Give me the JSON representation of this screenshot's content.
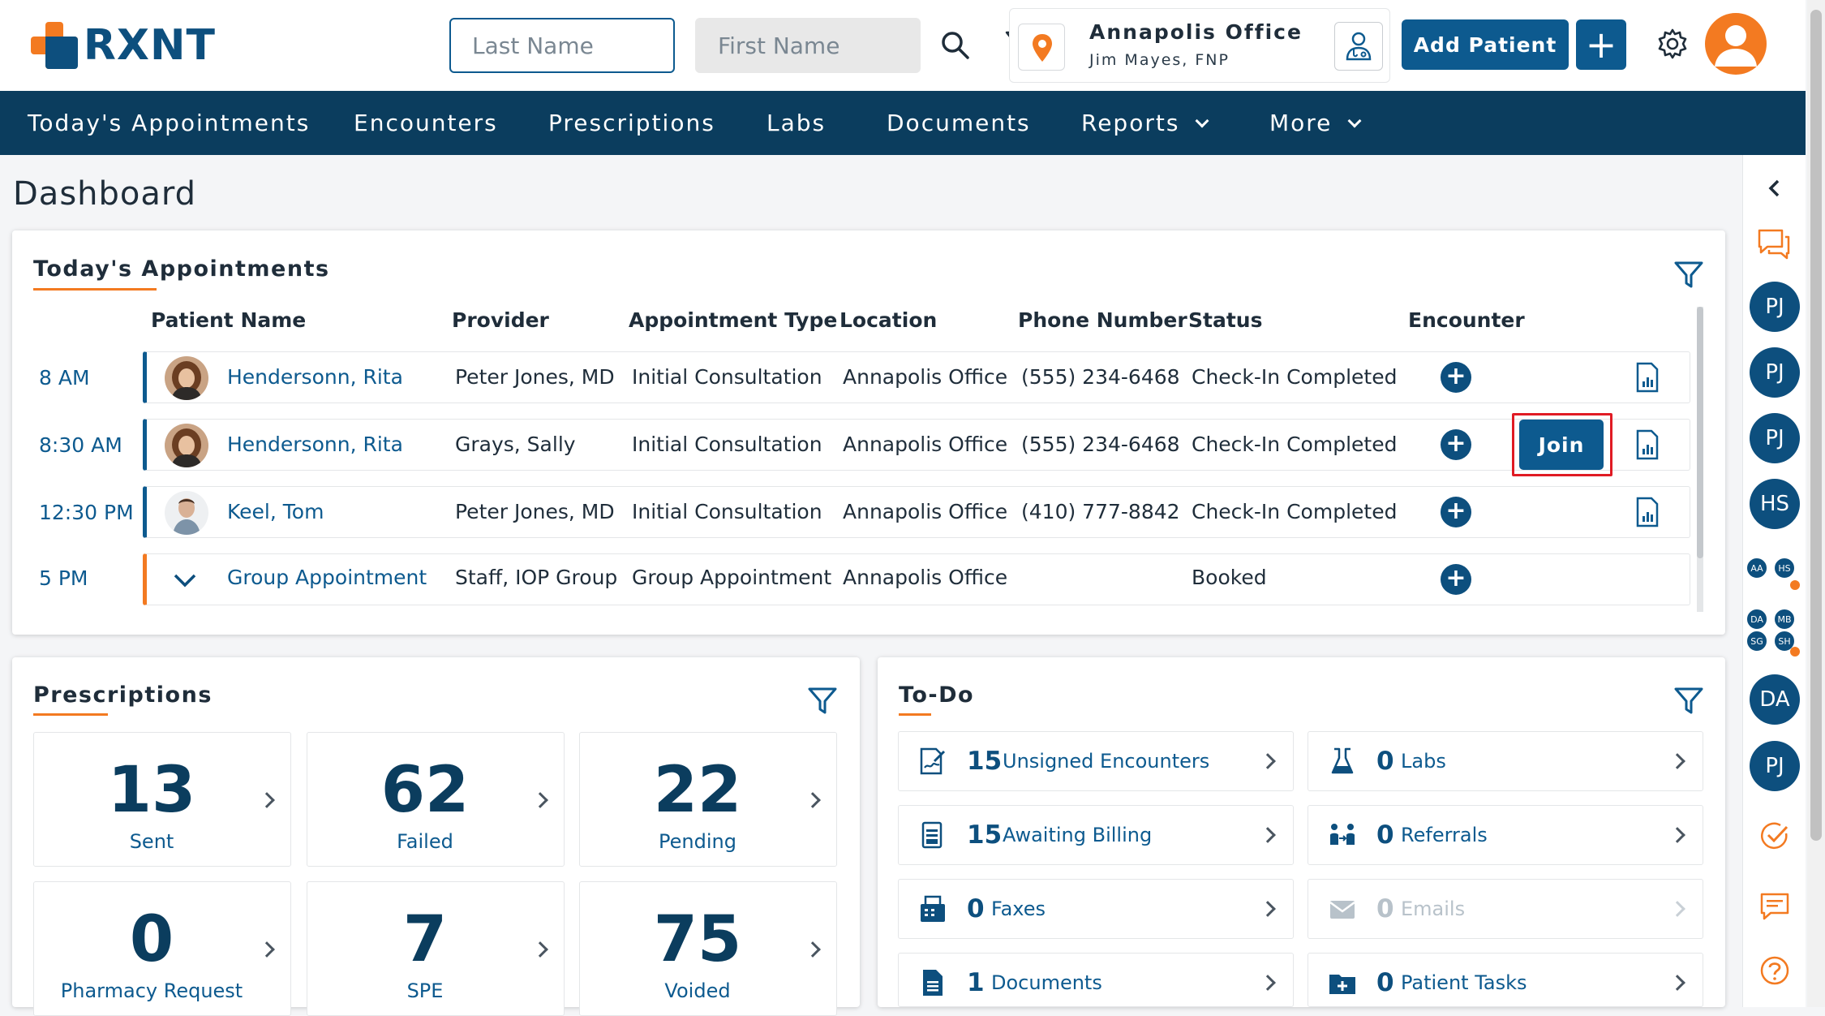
{
  "header": {
    "logo_text": "RXNT",
    "last_name_placeholder": "Last Name",
    "first_name_placeholder": "First Name",
    "office_name": "Annapolis Office",
    "office_user": "Jim Mayes, FNP",
    "add_patient_label": "Add Patient",
    "plus_label": "+"
  },
  "nav": {
    "items": [
      "Today's Appointments",
      "Encounters",
      "Prescriptions",
      "Labs",
      "Documents",
      "Reports",
      "More"
    ]
  },
  "page_title": "Dashboard",
  "appointments": {
    "title": "Today's Appointments",
    "columns": [
      "Patient Name",
      "Provider",
      "Appointment Type",
      "Location",
      "Phone Number",
      "Status",
      "Encounter"
    ],
    "rows": [
      {
        "time": "8 AM",
        "patient": "Hendersonn, Rita",
        "provider": "Peter Jones, MD",
        "type": "Initial Consultation",
        "location": "Annapolis Office",
        "phone": "(555) 234-6468",
        "status": "Check-In Completed"
      },
      {
        "time": "8:30 AM",
        "patient": "Hendersonn, Rita",
        "provider": "Grays, Sally",
        "type": "Initial Consultation",
        "location": "Annapolis Office",
        "phone": "(555) 234-6468",
        "status": "Check-In Completed"
      },
      {
        "time": "12:30 PM",
        "patient": "Keel, Tom",
        "provider": "Peter Jones, MD",
        "type": "Initial Consultation",
        "location": "Annapolis Office",
        "phone": "(410) 777-8842",
        "status": "Check-In Completed"
      },
      {
        "time": "5 PM",
        "patient": "Group Appointment",
        "provider": "Staff, IOP Group",
        "type": "Group Appointment",
        "location": "Annapolis Office",
        "phone": "",
        "status": "Booked"
      }
    ],
    "join_label": "Join",
    "encounter_plus": "+"
  },
  "prescriptions": {
    "title": "Prescriptions",
    "stats": [
      {
        "value": "13",
        "label": "Sent"
      },
      {
        "value": "62",
        "label": "Failed"
      },
      {
        "value": "22",
        "label": "Pending"
      },
      {
        "value": "0",
        "label": "Pharmacy Request"
      },
      {
        "value": "7",
        "label": "SPE"
      },
      {
        "value": "75",
        "label": "Voided"
      }
    ]
  },
  "todo": {
    "title": "To-Do",
    "items": [
      {
        "count": "15",
        "label": "Unsigned Encounters",
        "icon": "signature-doc-icon"
      },
      {
        "count": "0",
        "label": "Labs",
        "icon": "flask-icon"
      },
      {
        "count": "15",
        "label": "Awaiting Billing",
        "icon": "billing-doc-icon"
      },
      {
        "count": "0",
        "label": "Referrals",
        "icon": "referral-icon"
      },
      {
        "count": "0",
        "label": "Faxes",
        "icon": "fax-icon"
      },
      {
        "count": "0",
        "label": "Emails",
        "icon": "email-icon"
      },
      {
        "count": "1",
        "label": "Documents",
        "icon": "document-icon"
      },
      {
        "count": "0",
        "label": "Patient Tasks",
        "icon": "task-folder-icon"
      }
    ]
  },
  "rail": {
    "avatars": [
      "PJ",
      "PJ",
      "PJ",
      "HS",
      "DA",
      "PJ"
    ],
    "group1": [
      "AA",
      "HS"
    ],
    "group2": [
      "DA",
      "MB",
      "SG",
      "SH"
    ]
  },
  "colors": {
    "brand_blue": "#0d5a8f",
    "nav_bg": "#0b3d5e",
    "accent_orange": "#f37a21",
    "highlight_red": "#e01b24"
  }
}
